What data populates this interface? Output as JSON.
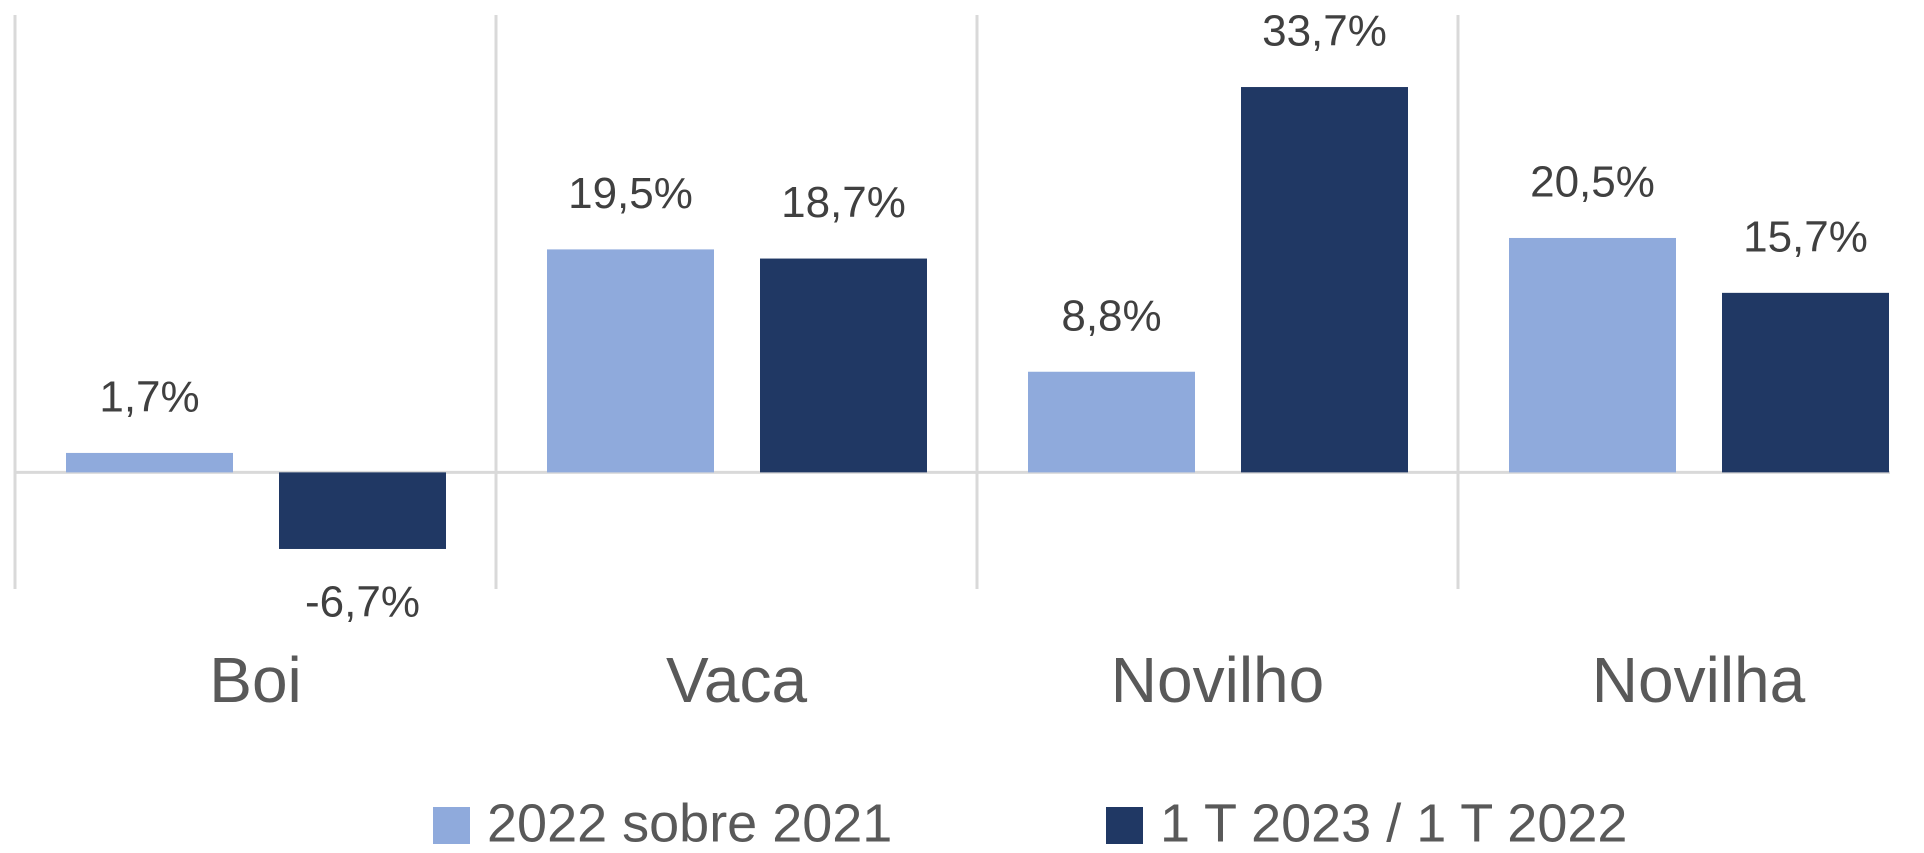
{
  "chart_data": {
    "type": "bar",
    "categories": [
      "Boi",
      "Vaca",
      "Novilho",
      "Novilha"
    ],
    "series": [
      {
        "name": "2022 sobre 2021",
        "color": "#8faadc",
        "values": [
          1.7,
          19.5,
          8.8,
          20.5
        ],
        "value_labels": [
          "1,7%",
          "19,5%",
          "8,8%",
          "20,5%"
        ]
      },
      {
        "name": "1 T 2023 / 1 T 2022",
        "color": "#203864",
        "values": [
          -6.7,
          18.7,
          33.7,
          15.7
        ],
        "value_labels": [
          "-6,7%",
          "18,7%",
          "33,7%",
          "15,7%"
        ]
      }
    ],
    "ylim": [
      -10.2,
      40
    ]
  }
}
